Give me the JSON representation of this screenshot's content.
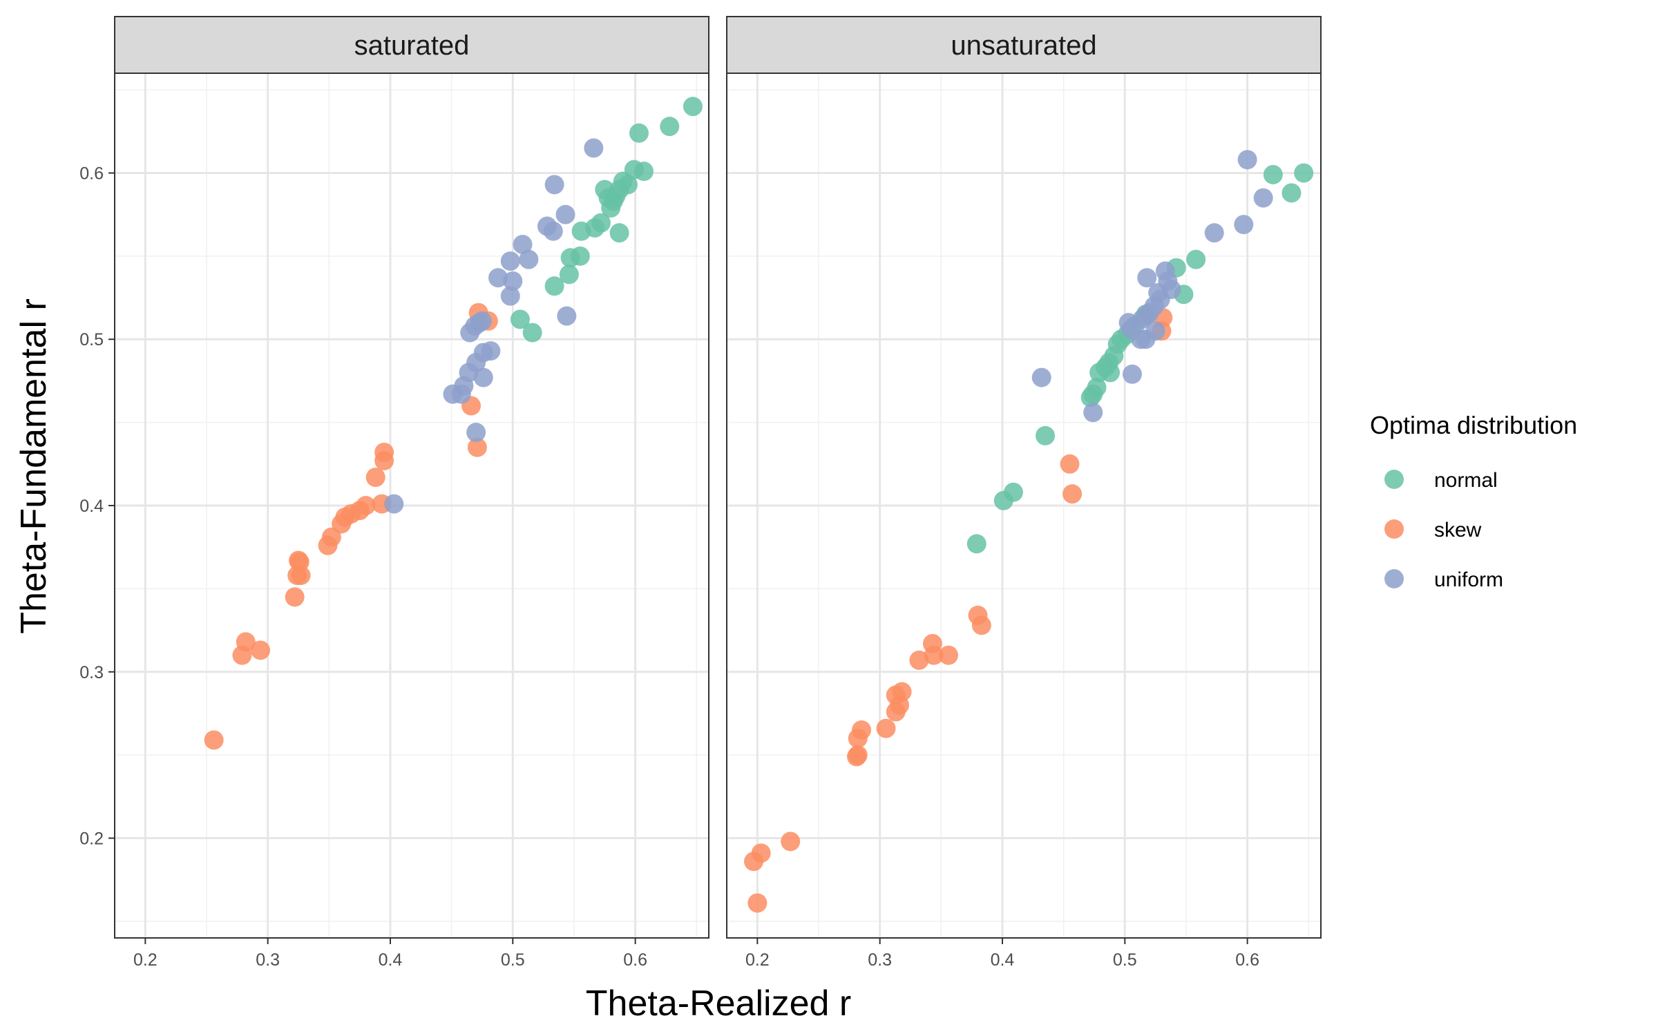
{
  "chart_data": {
    "type": "scatter",
    "xlabel": "Theta-Realized r",
    "ylabel": "Theta-Fundamental r",
    "xlim": [
      0.175,
      0.66
    ],
    "ylim": [
      0.14,
      0.66
    ],
    "x_ticks": [
      0.2,
      0.3,
      0.4,
      0.5,
      0.6
    ],
    "x_tick_labels": [
      "0.2",
      "0.3",
      "0.4",
      "0.5",
      "0.6"
    ],
    "y_ticks": [
      0.2,
      0.3,
      0.4,
      0.5,
      0.6
    ],
    "y_tick_labels": [
      "0.2",
      "0.3",
      "0.4",
      "0.5",
      "0.6"
    ],
    "grid": true,
    "legend": {
      "title": "Optima distribution",
      "position": "right",
      "entries": [
        {
          "name": "normal",
          "color": "#66C2A5"
        },
        {
          "name": "skew",
          "color": "#FC8D62"
        },
        {
          "name": "uniform",
          "color": "#8DA0CB"
        }
      ]
    },
    "panels": [
      {
        "title": "saturated",
        "series": [
          {
            "name": "normal",
            "color": "#66C2A5",
            "points": [
              [
                0.647,
                0.64
              ],
              [
                0.628,
                0.628
              ],
              [
                0.603,
                0.624
              ],
              [
                0.607,
                0.601
              ],
              [
                0.599,
                0.602
              ],
              [
                0.594,
                0.593
              ],
              [
                0.59,
                0.595
              ],
              [
                0.587,
                0.59
              ],
              [
                0.584,
                0.586
              ],
              [
                0.582,
                0.583
              ],
              [
                0.58,
                0.579
              ],
              [
                0.575,
                0.59
              ],
              [
                0.578,
                0.585
              ],
              [
                0.572,
                0.57
              ],
              [
                0.567,
                0.567
              ],
              [
                0.587,
                0.564
              ],
              [
                0.556,
                0.565
              ],
              [
                0.555,
                0.55
              ],
              [
                0.547,
                0.549
              ],
              [
                0.546,
                0.539
              ],
              [
                0.534,
                0.532
              ],
              [
                0.506,
                0.512
              ],
              [
                0.516,
                0.504
              ]
            ]
          },
          {
            "name": "skew",
            "color": "#FC8D62",
            "points": [
              [
                0.472,
                0.516
              ],
              [
                0.48,
                0.511
              ],
              [
                0.466,
                0.46
              ],
              [
                0.471,
                0.435
              ],
              [
                0.395,
                0.432
              ],
              [
                0.395,
                0.427
              ],
              [
                0.388,
                0.417
              ],
              [
                0.393,
                0.401
              ],
              [
                0.38,
                0.4
              ],
              [
                0.375,
                0.397
              ],
              [
                0.368,
                0.395
              ],
              [
                0.363,
                0.393
              ],
              [
                0.36,
                0.389
              ],
              [
                0.352,
                0.381
              ],
              [
                0.349,
                0.376
              ],
              [
                0.326,
                0.366
              ],
              [
                0.325,
                0.367
              ],
              [
                0.327,
                0.358
              ],
              [
                0.324,
                0.358
              ],
              [
                0.322,
                0.345
              ],
              [
                0.282,
                0.318
              ],
              [
                0.279,
                0.31
              ],
              [
                0.294,
                0.313
              ],
              [
                0.256,
                0.259
              ]
            ]
          },
          {
            "name": "uniform",
            "color": "#8DA0CB",
            "points": [
              [
                0.566,
                0.615
              ],
              [
                0.534,
                0.593
              ],
              [
                0.543,
                0.575
              ],
              [
                0.528,
                0.568
              ],
              [
                0.533,
                0.565
              ],
              [
                0.508,
                0.557
              ],
              [
                0.513,
                0.548
              ],
              [
                0.498,
                0.547
              ],
              [
                0.488,
                0.537
              ],
              [
                0.5,
                0.535
              ],
              [
                0.498,
                0.526
              ],
              [
                0.544,
                0.514
              ],
              [
                0.475,
                0.511
              ],
              [
                0.473,
                0.51
              ],
              [
                0.469,
                0.508
              ],
              [
                0.465,
                0.504
              ],
              [
                0.482,
                0.493
              ],
              [
                0.476,
                0.492
              ],
              [
                0.47,
                0.486
              ],
              [
                0.464,
                0.48
              ],
              [
                0.476,
                0.477
              ],
              [
                0.46,
                0.472
              ],
              [
                0.451,
                0.467
              ],
              [
                0.458,
                0.467
              ],
              [
                0.47,
                0.444
              ],
              [
                0.403,
                0.401
              ]
            ]
          }
        ]
      },
      {
        "title": "unsaturated",
        "series": [
          {
            "name": "normal",
            "color": "#66C2A5",
            "points": [
              [
                0.646,
                0.6
              ],
              [
                0.621,
                0.599
              ],
              [
                0.636,
                0.588
              ],
              [
                0.558,
                0.548
              ],
              [
                0.542,
                0.543
              ],
              [
                0.548,
                0.527
              ],
              [
                0.517,
                0.515
              ],
              [
                0.508,
                0.508
              ],
              [
                0.502,
                0.503
              ],
              [
                0.497,
                0.5
              ],
              [
                0.494,
                0.497
              ],
              [
                0.491,
                0.49
              ],
              [
                0.487,
                0.486
              ],
              [
                0.484,
                0.483
              ],
              [
                0.488,
                0.48
              ],
              [
                0.479,
                0.48
              ],
              [
                0.477,
                0.471
              ],
              [
                0.474,
                0.467
              ],
              [
                0.472,
                0.465
              ],
              [
                0.435,
                0.442
              ],
              [
                0.409,
                0.408
              ],
              [
                0.401,
                0.403
              ],
              [
                0.379,
                0.377
              ]
            ]
          },
          {
            "name": "skew",
            "color": "#FC8D62",
            "points": [
              [
                0.531,
                0.513
              ],
              [
                0.53,
                0.505
              ],
              [
                0.455,
                0.425
              ],
              [
                0.457,
                0.407
              ],
              [
                0.38,
                0.334
              ],
              [
                0.383,
                0.328
              ],
              [
                0.343,
                0.317
              ],
              [
                0.344,
                0.31
              ],
              [
                0.356,
                0.31
              ],
              [
                0.332,
                0.307
              ],
              [
                0.318,
                0.288
              ],
              [
                0.313,
                0.286
              ],
              [
                0.316,
                0.28
              ],
              [
                0.313,
                0.276
              ],
              [
                0.305,
                0.266
              ],
              [
                0.285,
                0.265
              ],
              [
                0.282,
                0.26
              ],
              [
                0.282,
                0.25
              ],
              [
                0.281,
                0.249
              ],
              [
                0.227,
                0.198
              ],
              [
                0.203,
                0.191
              ],
              [
                0.197,
                0.186
              ],
              [
                0.2,
                0.161
              ]
            ]
          },
          {
            "name": "uniform",
            "color": "#8DA0CB",
            "points": [
              [
                0.6,
                0.608
              ],
              [
                0.613,
                0.585
              ],
              [
                0.597,
                0.569
              ],
              [
                0.573,
                0.564
              ],
              [
                0.533,
                0.541
              ],
              [
                0.518,
                0.537
              ],
              [
                0.535,
                0.535
              ],
              [
                0.538,
                0.53
              ],
              [
                0.527,
                0.528
              ],
              [
                0.529,
                0.524
              ],
              [
                0.524,
                0.52
              ],
              [
                0.52,
                0.516
              ],
              [
                0.517,
                0.514
              ],
              [
                0.514,
                0.512
              ],
              [
                0.503,
                0.51
              ],
              [
                0.505,
                0.506
              ],
              [
                0.525,
                0.505
              ],
              [
                0.517,
                0.5
              ],
              [
                0.513,
                0.5
              ],
              [
                0.506,
                0.479
              ],
              [
                0.432,
                0.477
              ],
              [
                0.474,
                0.456
              ]
            ]
          }
        ]
      }
    ]
  }
}
